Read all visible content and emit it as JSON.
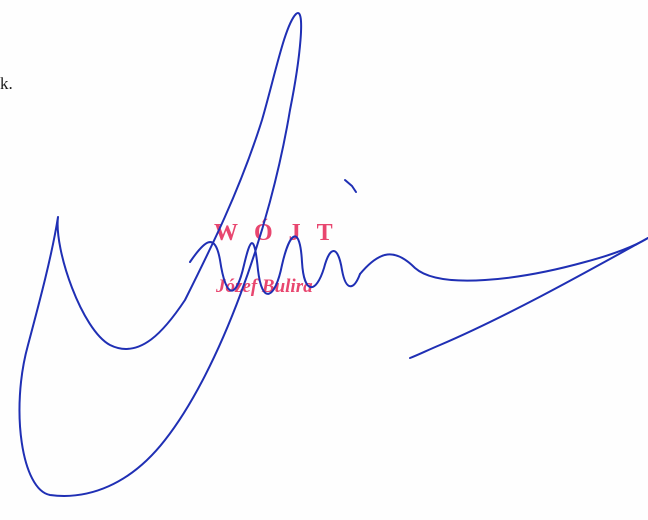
{
  "document": {
    "fragment_text": "k."
  },
  "stamp": {
    "title": "WÓJT",
    "name": "Józef Bulira",
    "color": "#e8466f"
  },
  "signature": {
    "ink_color": "#1f2fb4",
    "kind": "handwritten-signature"
  }
}
